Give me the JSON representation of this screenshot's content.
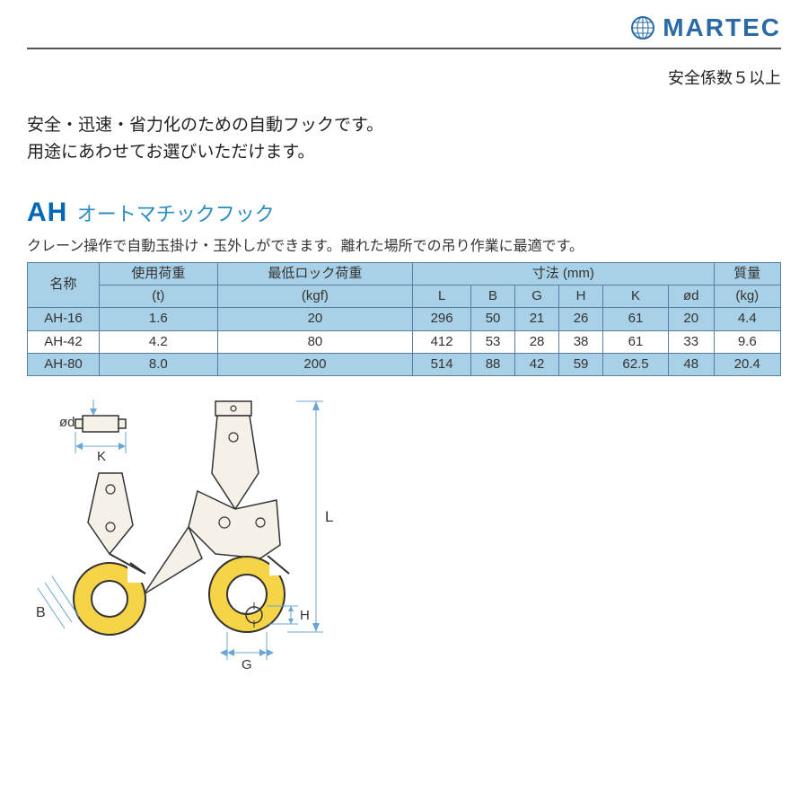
{
  "brand": "MARTEC",
  "safety_note": "安全係数５以上",
  "intro_line1": "安全・迅速・省力化のための自動フックです。",
  "intro_line2": "用途にあわせてお選びいただけます。",
  "product": {
    "code": "AH",
    "name": "オートマチックフック",
    "desc": "クレーン操作で自動玉掛け・玉外しができます。離れた場所での吊り作業に最適です。"
  },
  "table": {
    "header": {
      "name": "名称",
      "load": "使用荷重",
      "load_unit": "(t)",
      "min_lock": "最低ロック荷重",
      "min_lock_unit": "(kgf)",
      "dim": "寸法 (mm)",
      "mass": "質量",
      "mass_unit": "(kg)",
      "L": "L",
      "B": "B",
      "G": "G",
      "H": "H",
      "K": "K",
      "od": "ød"
    },
    "rows": [
      {
        "name": "AH-16",
        "load": "1.6",
        "min_lock": "20",
        "L": "296",
        "B": "50",
        "G": "21",
        "H": "26",
        "K": "61",
        "od": "20",
        "mass": "4.4"
      },
      {
        "name": "AH-42",
        "load": "4.2",
        "min_lock": "80",
        "L": "412",
        "B": "53",
        "G": "28",
        "H": "38",
        "K": "61",
        "od": "33",
        "mass": "9.6"
      },
      {
        "name": "AH-80",
        "load": "8.0",
        "min_lock": "200",
        "L": "514",
        "B": "88",
        "G": "42",
        "H": "59",
        "K": "62.5",
        "od": "48",
        "mass": "20.4"
      }
    ],
    "row_bg": [
      "#a8d0e6",
      "#ffffff",
      "#a8d0e6"
    ]
  },
  "colors": {
    "brand": "#2a6aa6",
    "product_code": "#0068b7",
    "product_name": "#2a8cc0",
    "header_bg": "#a8d0e6",
    "border": "#5a7ea0",
    "diagram_stroke": "#333333",
    "diagram_hook_fill": "#f5d547",
    "diagram_body_fill": "#f5f0e8",
    "diagram_dim": "#6aa5d6"
  },
  "diagram_labels": {
    "od": "ød",
    "K": "K",
    "B": "B",
    "L": "L",
    "G": "G",
    "H": "H"
  }
}
